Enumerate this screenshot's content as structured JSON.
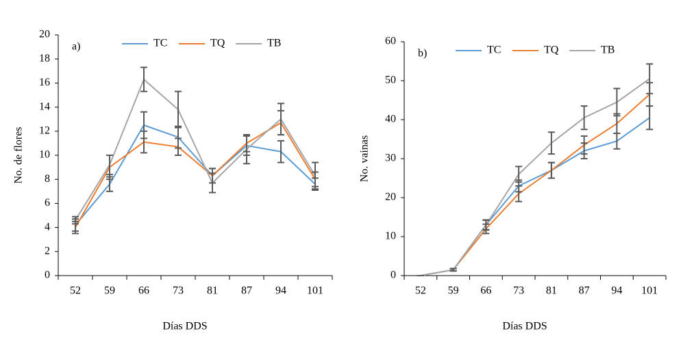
{
  "chart_data": [
    {
      "type": "line",
      "annotation": "a)",
      "x_label": "Días DDS",
      "y_label": "No. de flores",
      "categories": [
        "52",
        "59",
        "66",
        "73",
        "81",
        "87",
        "94",
        "101"
      ],
      "ylim": [
        0,
        20
      ],
      "yticks": [
        0,
        2,
        4,
        6,
        8,
        10,
        12,
        14,
        16,
        18,
        20
      ],
      "error_color": "#595959",
      "series": [
        {
          "name": "TC",
          "color": "#5b9bd5",
          "values": [
            4.2,
            7.6,
            12.5,
            11.5,
            8.3,
            10.8,
            10.3,
            7.6
          ],
          "errors": [
            0.5,
            0.6,
            1.1,
            0.9,
            0.6,
            0.8,
            0.9,
            0.5
          ]
        },
        {
          "name": "TQ",
          "color": "#ed7d31",
          "values": [
            4.0,
            9.0,
            11.1,
            10.7,
            8.3,
            11.0,
            12.7,
            8.0
          ],
          "errors": [
            0.5,
            1.0,
            0.9,
            0.7,
            0.6,
            0.7,
            1.0,
            0.6
          ]
        },
        {
          "name": "TB",
          "color": "#a5a5a5",
          "values": [
            4.6,
            9.2,
            16.3,
            13.8,
            7.7,
            10.5,
            13.0,
            8.3
          ],
          "errors": [
            0.3,
            0.8,
            1.0,
            1.5,
            0.8,
            1.2,
            1.3,
            1.1
          ]
        }
      ]
    },
    {
      "type": "line",
      "annotation": "b)",
      "x_label": "Días DDS",
      "y_label": "No. vainas",
      "categories": [
        "52",
        "59",
        "66",
        "73",
        "81",
        "87",
        "94",
        "101"
      ],
      "ylim": [
        0,
        60
      ],
      "yticks": [
        0,
        10,
        20,
        30,
        40,
        50,
        60
      ],
      "error_color": "#595959",
      "series": [
        {
          "name": "TC",
          "color": "#5b9bd5",
          "values": [
            0,
            1.5,
            13,
            23,
            27,
            32,
            34.5,
            40.5
          ],
          "errors": [
            0,
            0.3,
            1.2,
            1.5,
            2,
            2,
            2,
            3
          ]
        },
        {
          "name": "TQ",
          "color": "#ed7d31",
          "values": [
            0,
            1.5,
            12,
            21,
            27,
            33.5,
            39,
            46.5
          ],
          "errors": [
            0,
            0.3,
            1.2,
            2,
            2,
            2.3,
            2.5,
            3
          ]
        },
        {
          "name": "TB",
          "color": "#a5a5a5",
          "values": [
            0,
            1.5,
            13,
            26,
            34,
            40.5,
            44.5,
            50.5
          ],
          "errors": [
            0,
            0.3,
            1.3,
            2,
            2.8,
            3,
            3.5,
            3.8
          ]
        }
      ]
    }
  ]
}
